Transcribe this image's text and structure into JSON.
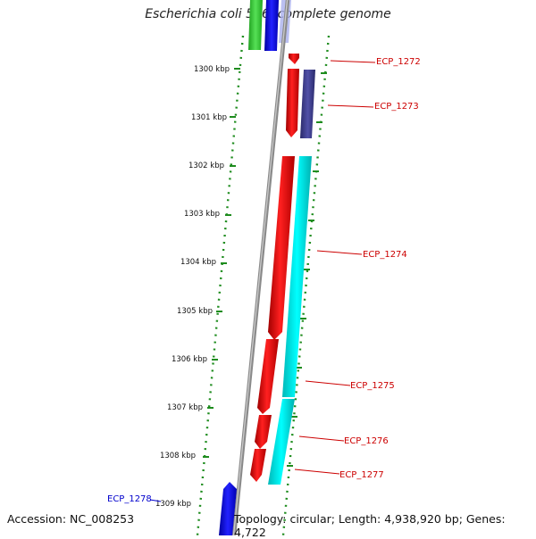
{
  "title": "Escherichia coli 536, complete genome",
  "footer": {
    "accession": "Accession: NC_008253",
    "summary": "Topology: circular; Length: 4,938,920 bp; Genes: 4,722"
  },
  "ruler": {
    "unit": "kbp",
    "labels": [
      "1300 kbp",
      "1301 kbp",
      "1302 kbp",
      "1303 kbp",
      "1304 kbp",
      "1305 kbp",
      "1306 kbp",
      "1307 kbp",
      "1308 kbp",
      "1309 kbp"
    ]
  },
  "genes": [
    {
      "label": "ECP_1272",
      "color": "#cc0000"
    },
    {
      "label": "ECP_1273",
      "color": "#cc0000"
    },
    {
      "label": "ECP_1274",
      "color": "#cc0000"
    },
    {
      "label": "ECP_1275",
      "color": "#cc0000"
    },
    {
      "label": "ECP_1276",
      "color": "#cc0000"
    },
    {
      "label": "ECP_1277",
      "color": "#cc0000"
    },
    {
      "label": "ECP_1278",
      "color": "#0000cc"
    }
  ],
  "colors": {
    "ruler_dots": "#1e8c1e",
    "backbone": "#8a8a8a",
    "gene_red": "#ee1111",
    "gene_blue": "#1515ee",
    "gene_cyan": "#00e5e5",
    "gene_purple": "#3d3d8e",
    "gene_green": "#3fcf3f"
  }
}
